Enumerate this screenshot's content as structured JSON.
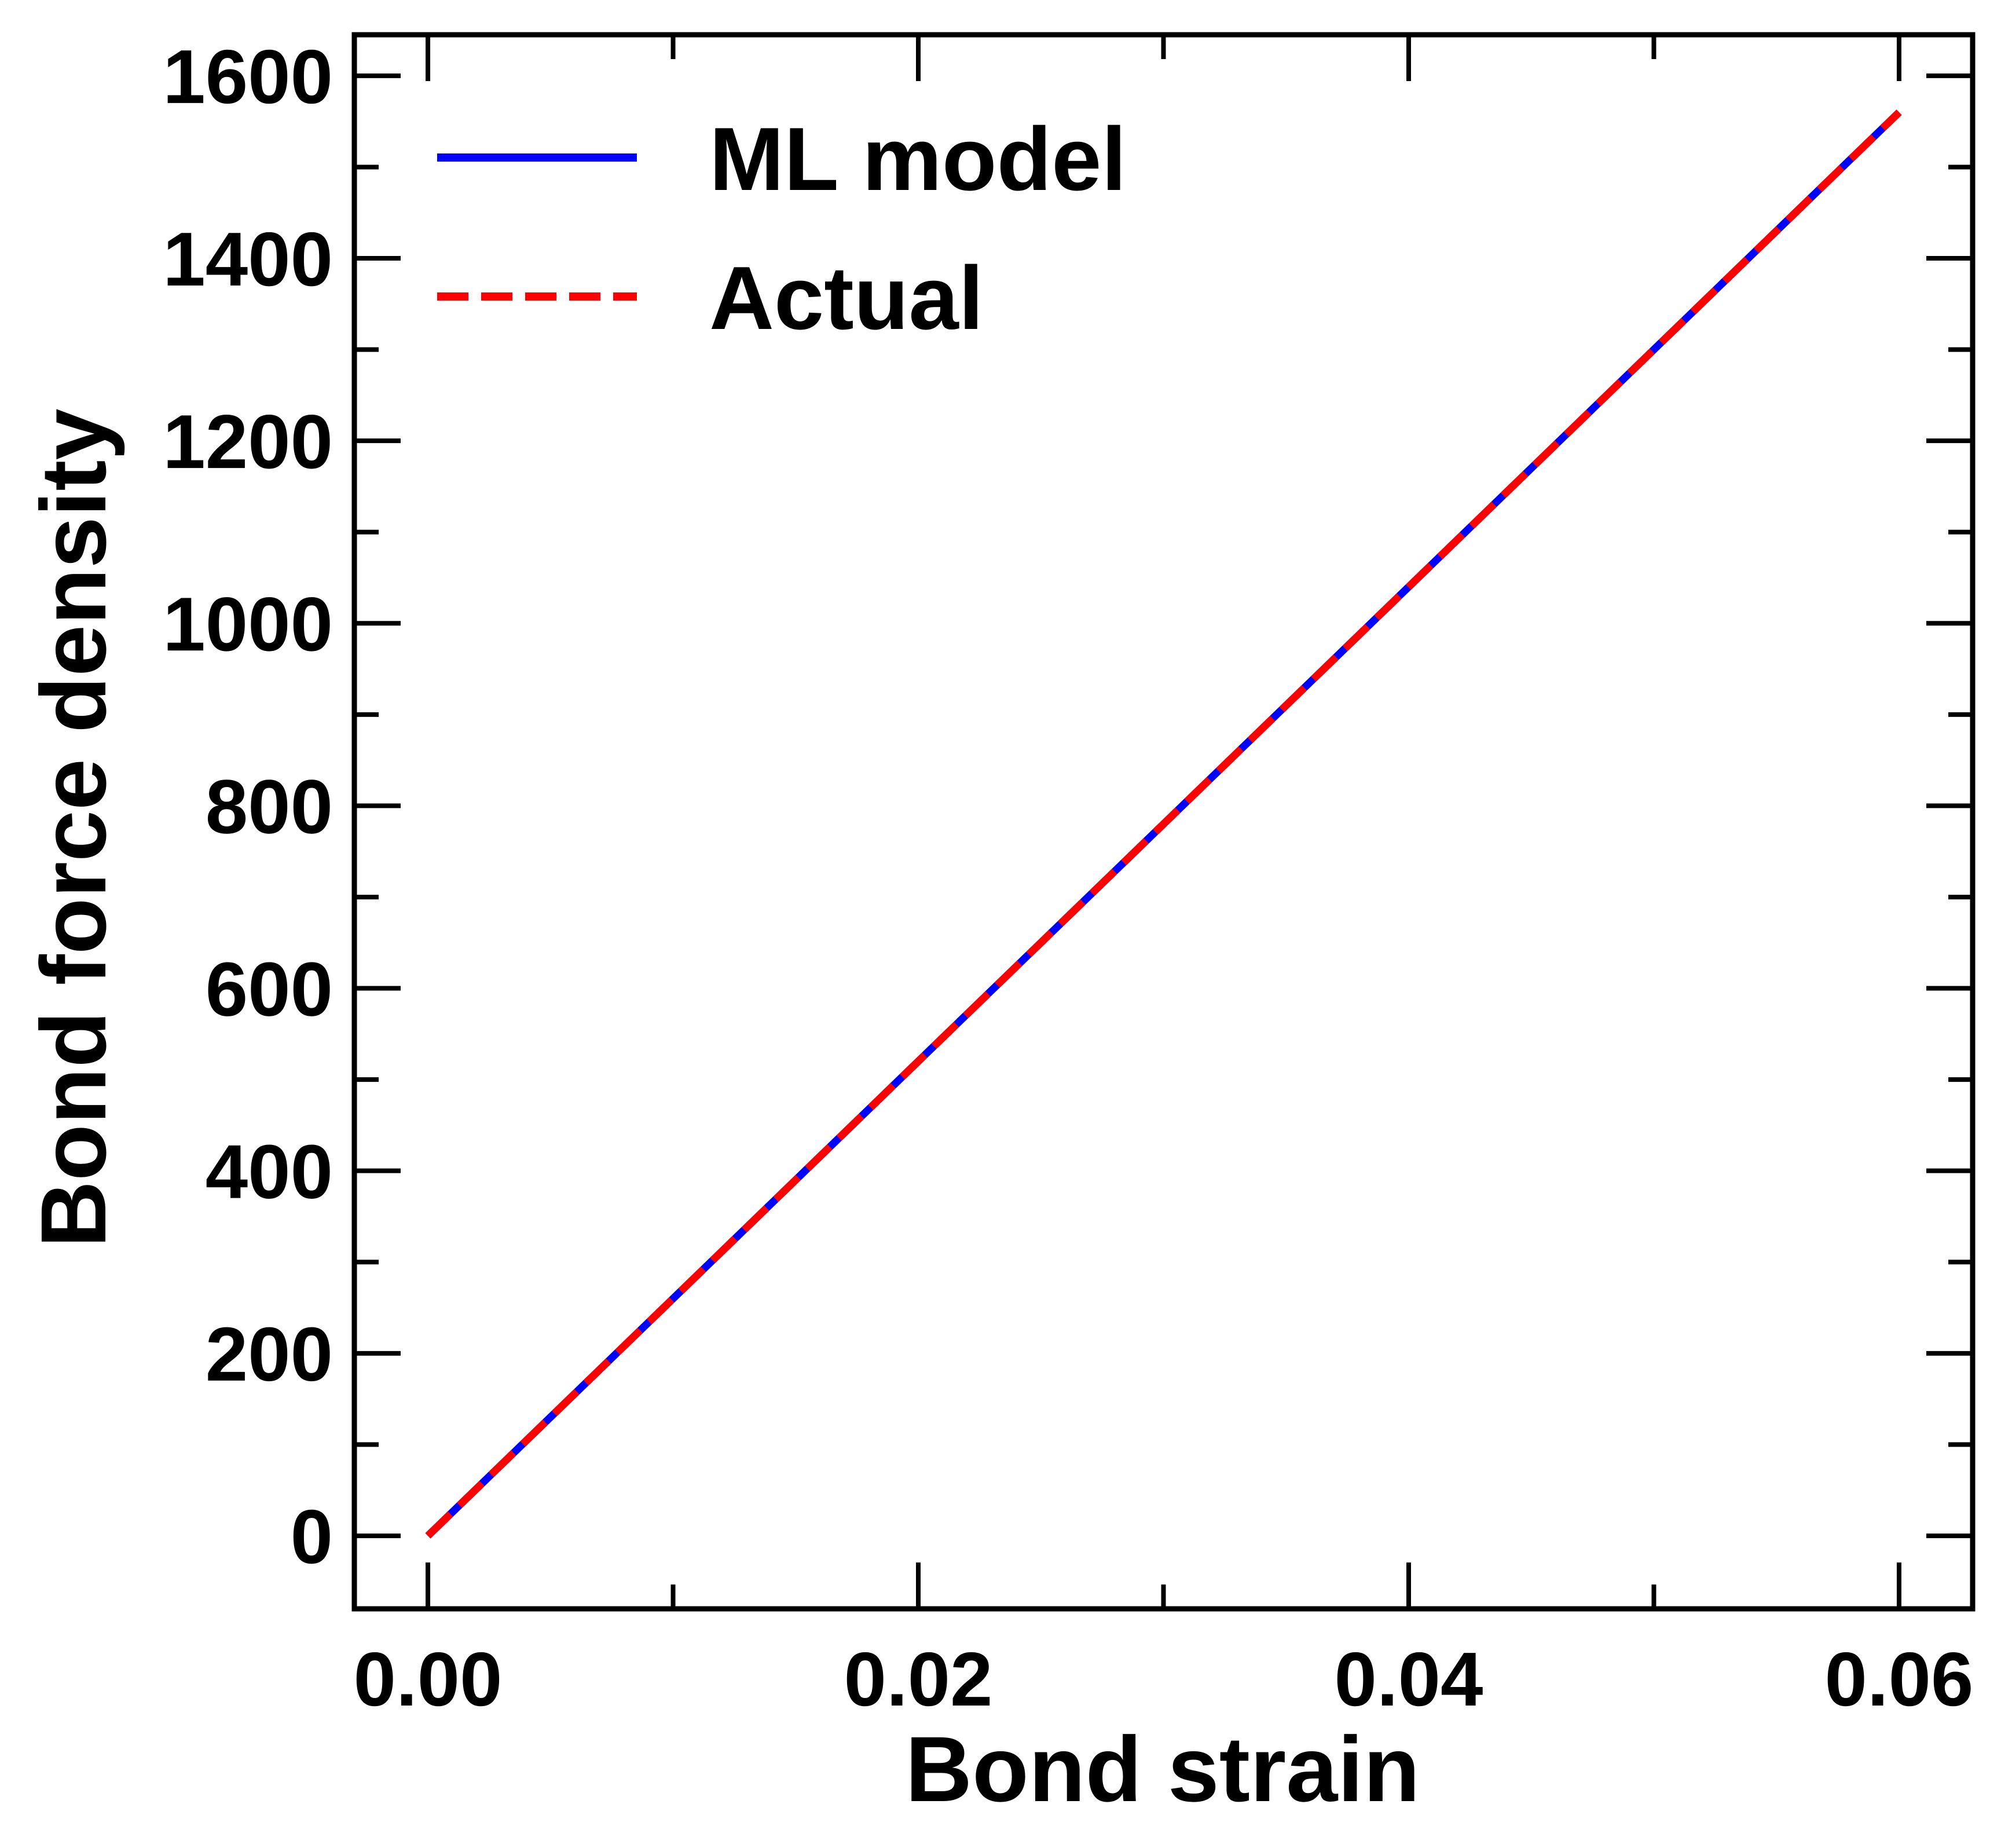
{
  "chart_data": {
    "type": "line",
    "title": "",
    "xlabel": "Bond strain",
    "ylabel": "Bond force density",
    "xlim": [
      -0.003,
      0.063
    ],
    "ylim": [
      -80,
      1645
    ],
    "x_ticks": [
      {
        "value": 0.0,
        "label": "0.00"
      },
      {
        "value": 0.02,
        "label": "0.02"
      },
      {
        "value": 0.04,
        "label": "0.04"
      },
      {
        "value": 0.06,
        "label": "0.06"
      }
    ],
    "x_minor_ticks": [
      0.01,
      0.03,
      0.05
    ],
    "y_ticks": [
      {
        "value": 0,
        "label": "0"
      },
      {
        "value": 200,
        "label": "200"
      },
      {
        "value": 400,
        "label": "400"
      },
      {
        "value": 600,
        "label": "600"
      },
      {
        "value": 800,
        "label": "800"
      },
      {
        "value": 1000,
        "label": "1000"
      },
      {
        "value": 1200,
        "label": "1200"
      },
      {
        "value": 1400,
        "label": "1400"
      },
      {
        "value": 1600,
        "label": "1600"
      }
    ],
    "y_minor_ticks": [
      100,
      300,
      500,
      700,
      900,
      1100,
      1300,
      1500
    ],
    "grid": false,
    "legend_position": "top-left",
    "series": [
      {
        "name": "ML model",
        "color": "#0000ff",
        "dash": "solid",
        "x": [
          0.0,
          0.01,
          0.02,
          0.03,
          0.04,
          0.05,
          0.06
        ],
        "y": [
          0,
          260,
          520,
          780,
          1040,
          1300,
          1560
        ]
      },
      {
        "name": "Actual",
        "color": "#ff0000",
        "dash": "dashed",
        "x": [
          0.0,
          0.01,
          0.02,
          0.03,
          0.04,
          0.05,
          0.06
        ],
        "y": [
          0,
          260,
          520,
          780,
          1040,
          1300,
          1560
        ]
      }
    ]
  }
}
